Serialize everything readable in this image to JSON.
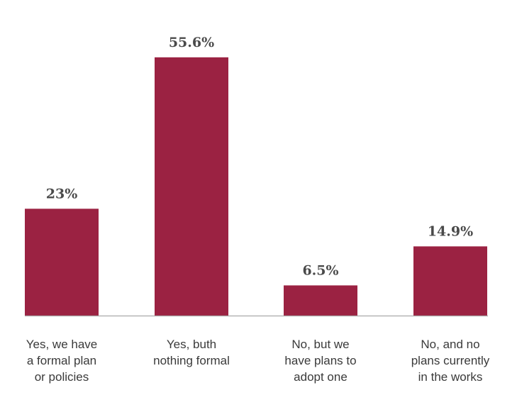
{
  "chart_data": {
    "type": "bar",
    "title": "",
    "xlabel": "",
    "ylabel": "",
    "categories": [
      [
        "Yes, we have",
        "a formal plan",
        "or policies"
      ],
      [
        "Yes, buth",
        "nothing formal"
      ],
      [
        "No, but we",
        "have plans to",
        "adopt one"
      ],
      [
        "No, and no",
        "plans currently",
        "in the works"
      ]
    ],
    "values": [
      23,
      55.6,
      6.5,
      14.9
    ],
    "value_labels": [
      "23%",
      "55.6%",
      "6.5%",
      "14.9%"
    ],
    "ylim": [
      0,
      60
    ],
    "grid": false,
    "bar_color": "#9b2242",
    "axis_color": "#aaaaaa"
  }
}
